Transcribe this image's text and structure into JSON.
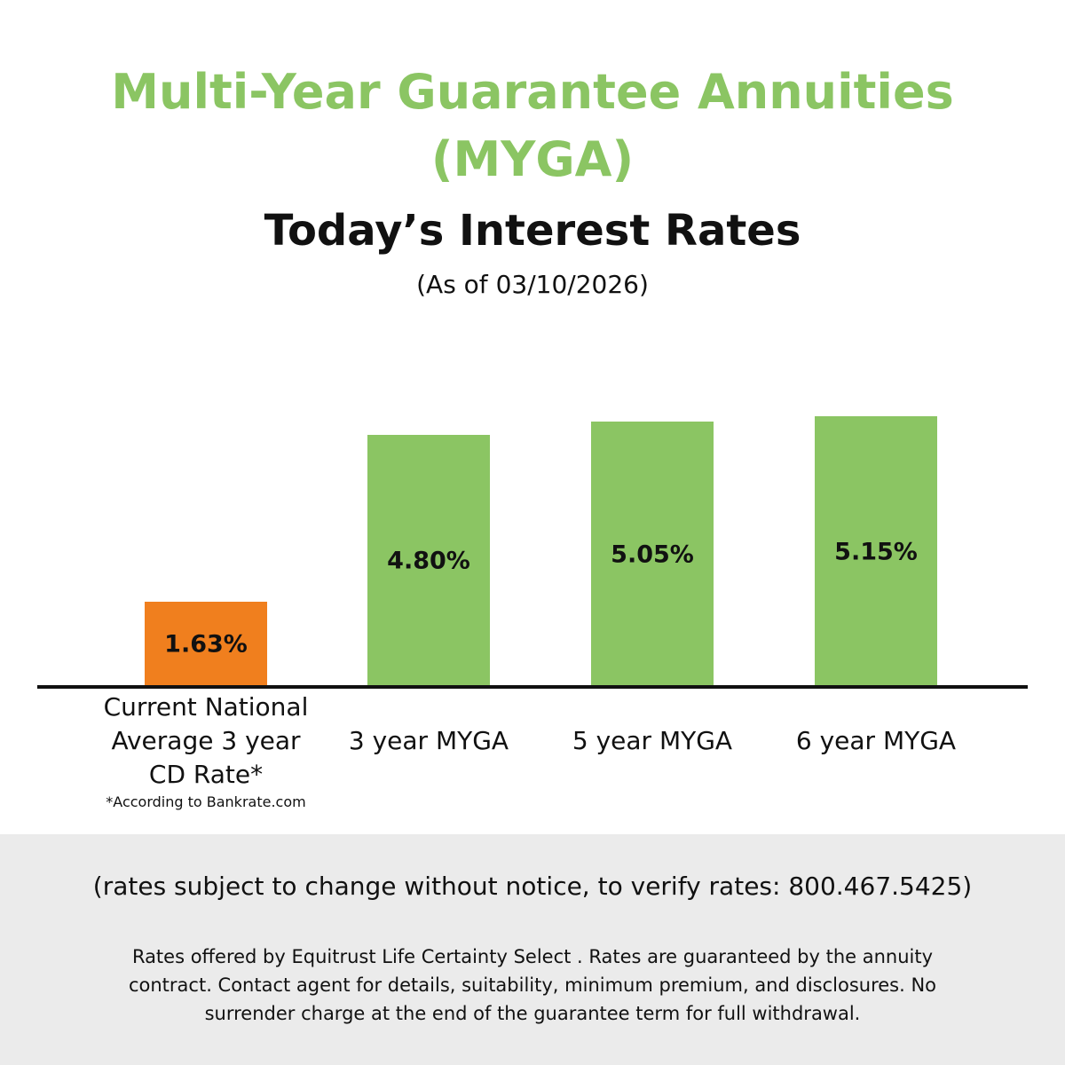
{
  "chart_data": {
    "type": "bar",
    "title": "Multi-Year Guarantee Annuities (MYGA)",
    "subtitle": "Today’s Interest Rates",
    "date_note": "(As of 03/10/2026)",
    "categories": [
      "Current National Average 3 year CD Rate*",
      "3 year MYGA",
      "5 year MYGA",
      "6 year MYGA"
    ],
    "values": [
      1.63,
      4.8,
      5.05,
      5.15
    ],
    "value_labels": [
      "1.63%",
      "4.80%",
      "5.05%",
      "5.15%"
    ],
    "colors": [
      "#f07f1e",
      "#8bc563",
      "#8bc563",
      "#8bc563"
    ],
    "footnote": "*According to Bankrate.com",
    "footer_note": "(rates subject to change without notice, to verify rates: 800.467.5425)",
    "disclaimer": "Rates offered by Equitrust Life Certainty Select . Rates are guaranteed by the annuity contract. Contact agent for details, suitability, minimum premium, and disclosures. No surrender charge at the end of the guarantee term for full withdrawal."
  }
}
